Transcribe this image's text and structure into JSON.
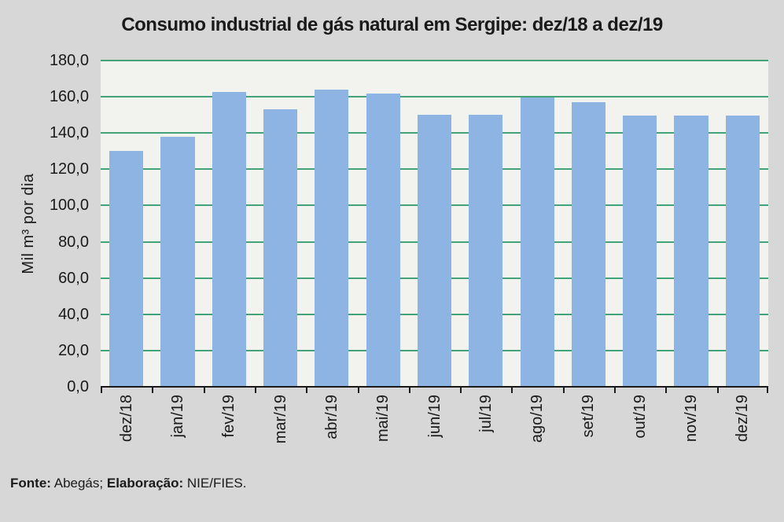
{
  "chart_data": {
    "type": "bar",
    "title": "Consumo industrial de gás natural em Sergipe: dez/18 a dez/19",
    "categories": [
      "dez/18",
      "jan/19",
      "fev/19",
      "mar/19",
      "abr/19",
      "mai/19",
      "jun/19",
      "jul/19",
      "ago/19",
      "set/19",
      "out/19",
      "nov/19",
      "dez/19"
    ],
    "values": [
      130.0,
      138.0,
      162.5,
      153.0,
      164.0,
      162.0,
      150.0,
      150.0,
      159.5,
      157.0,
      149.5,
      149.5,
      149.5
    ],
    "xlabel": "",
    "ylabel": "Mil m³ por dia",
    "ylim": [
      0,
      180
    ],
    "ytick_step": 20,
    "ytick_labels": [
      "0,0",
      "20,0",
      "40,0",
      "60,0",
      "80,0",
      "100,0",
      "120,0",
      "140,0",
      "160,0",
      "180,0"
    ],
    "grid": true,
    "legend": false,
    "colors": {
      "bar": "#8db4e2",
      "gridline": "#41a377",
      "plot_bg": "#f2f2ef",
      "canvas_bg": "#d7d7d7",
      "axis": "#1a1a1a",
      "text": "#1a1a1a"
    }
  },
  "footer": {
    "fonte_label": "Fonte:",
    "fonte_value": "Abegás;",
    "elaboracao_label": "Elaboração:",
    "elaboracao_value": "NIE/FIES."
  }
}
